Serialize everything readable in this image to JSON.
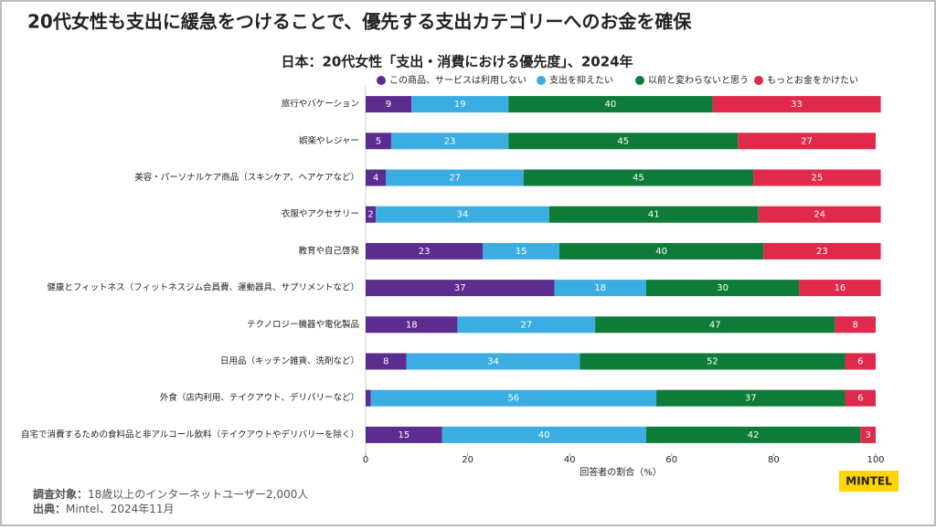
{
  "chart_data": {
    "type": "stacked-barh",
    "headline": "20代女性も支出に緩急をつけることで、優先する支出カテゴリーへのお金を確保",
    "title": "日本：20代女性「支出・消費における優先度」、2024年",
    "categories": [
      "旅行やバケーション",
      "娯楽やレジャー",
      "美容・パーソナルケア商品（スキンケア、ヘアケアなど）",
      "衣服やアクセサリー",
      "教育や自己啓発",
      "健康とフィットネス（フィットネスジム会員費、運動器具、サプリメントなど）",
      "テクノロジー機器や電化製品",
      "日用品（キッチン雑貨、洗剤など）",
      "外食（店内利用、テイクアウト、デリバリーなど）",
      "自宅で消費するための食料品と非アルコール飲料（テイクアウトやデリバリーを除く）"
    ],
    "series": [
      {
        "name": "この商品、サービスは利用しない",
        "color": "#5c2d8f",
        "values": [
          9,
          5,
          4,
          2,
          23,
          37,
          18,
          8,
          1,
          15
        ]
      },
      {
        "name": "支出を抑えたい",
        "color": "#3badE2",
        "values": [
          19,
          23,
          27,
          34,
          15,
          18,
          27,
          34,
          56,
          40
        ]
      },
      {
        "name": "以前と変わらないと思う",
        "color": "#0e7c38",
        "values": [
          40,
          45,
          45,
          41,
          40,
          30,
          47,
          52,
          37,
          42
        ]
      },
      {
        "name": "もっとお金をかけたい",
        "color": "#e0294b",
        "values": [
          33,
          27,
          25,
          24,
          23,
          16,
          8,
          6,
          6,
          3
        ]
      }
    ],
    "xlabel": "回答者の割合（%）",
    "xlim": [
      0,
      100
    ],
    "xticks": [
      0,
      20,
      40,
      60,
      80,
      100
    ],
    "grid": false,
    "legend": "top",
    "footnotes": [
      {
        "label": "調査対象：",
        "text": "18歳以上のインターネットユーザー2,000人"
      },
      {
        "label": "出典：",
        "text": "Mintel、2024年11月"
      }
    ],
    "logo": "MINTEL"
  }
}
